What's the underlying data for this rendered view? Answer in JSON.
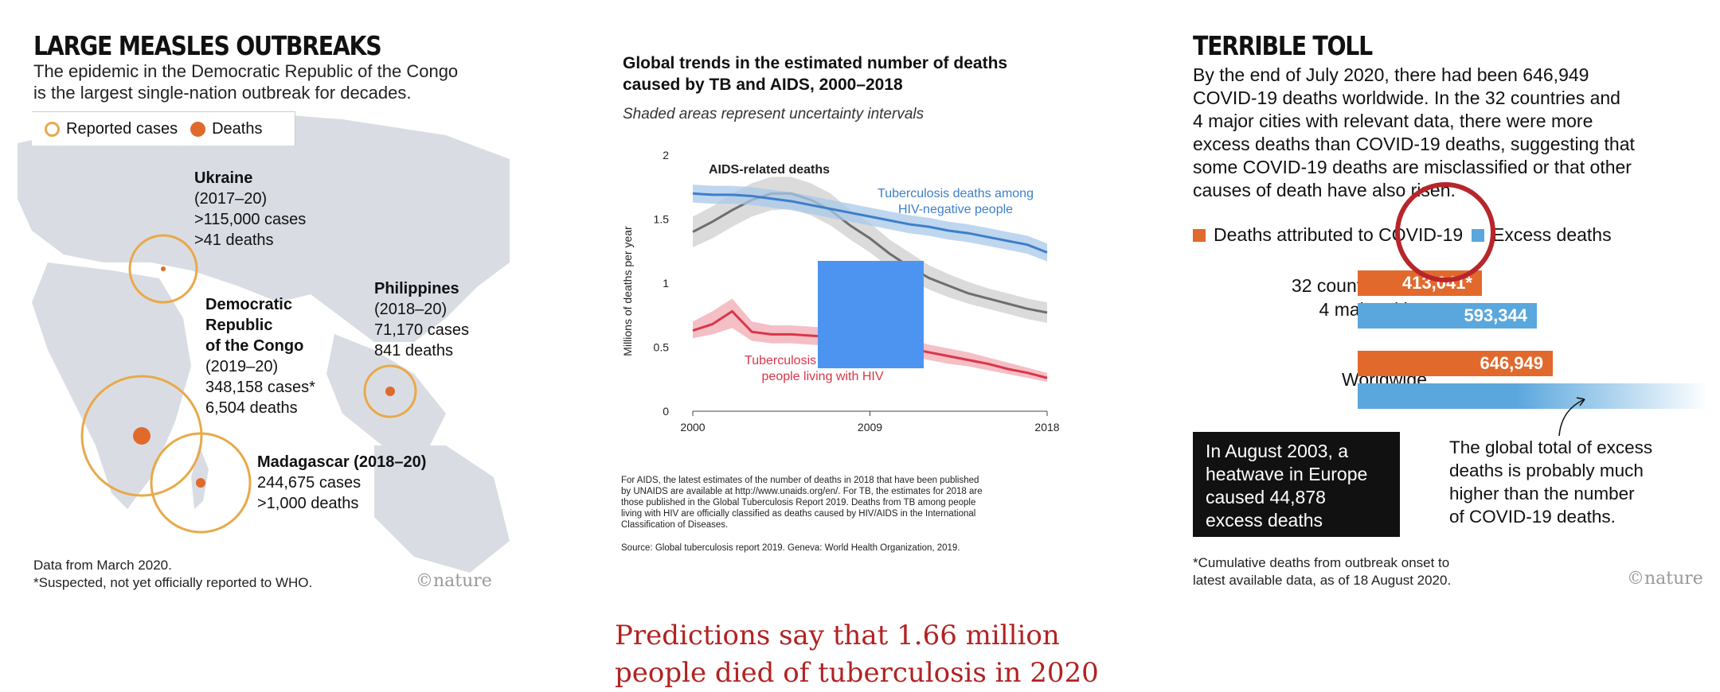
{
  "measles": {
    "title": "LARGE MEASLES OUTBREAKS",
    "subtitle_lines": [
      "The epidemic in the Democratic Republic of the Congo",
      "is the largest single-nation outbreak for decades."
    ],
    "legend": {
      "reported": "Reported cases",
      "deaths": "Deaths"
    },
    "colors": {
      "ring": "#e8a94a",
      "death": "#e06a2c",
      "land": "#d9dde3"
    },
    "outbreaks": [
      {
        "lines": [
          "Ukraine",
          "(2017–20)",
          ">115,000 cases",
          ">41 deaths"
        ],
        "cases": 115000,
        "deaths": 41
      },
      {
        "lines": [
          "Democratic",
          "Republic",
          "of the Congo",
          "(2019–20)",
          "348,158 cases*",
          "6,504 deaths"
        ],
        "cases": 348158,
        "deaths": 6504
      },
      {
        "lines": [
          "Philippines",
          "(2018–20)",
          "71,170 cases",
          "841 deaths"
        ],
        "cases": 71170,
        "deaths": 841
      },
      {
        "lines": [
          "Madagascar (2018–20)",
          "244,675 cases",
          ">1,000 deaths"
        ],
        "cases": 244675,
        "deaths": 1000
      }
    ],
    "foot_lines": [
      "Data from March 2020.",
      "*Suspected, not yet officially reported to WHO."
    ],
    "logo": "©nature"
  },
  "chart_data": {
    "type": "line",
    "title": "Global trends in the estimated number of deaths caused by TB and AIDS, 2000–2018",
    "subtitle": "Shaded areas represent uncertainty intervals",
    "ylabel": "Millions of deaths per year",
    "xlabel": "",
    "x": [
      2000,
      2001,
      2002,
      2003,
      2004,
      2005,
      2006,
      2007,
      2008,
      2009,
      2010,
      2011,
      2012,
      2013,
      2014,
      2015,
      2016,
      2017,
      2018
    ],
    "xlim": [
      2000,
      2018
    ],
    "ylim": [
      0,
      2
    ],
    "xticks": [
      "2000",
      "2009",
      "2018"
    ],
    "yticks": [
      "0",
      "0.5",
      "1",
      "1.5",
      "2"
    ],
    "grid": false,
    "series": [
      {
        "name": "AIDS-related deaths",
        "color": "#6e6e6e",
        "band": "#cfcfcf",
        "values": [
          1.4,
          1.48,
          1.57,
          1.65,
          1.7,
          1.7,
          1.65,
          1.57,
          1.45,
          1.35,
          1.23,
          1.13,
          1.04,
          0.98,
          0.92,
          0.88,
          0.84,
          0.8,
          0.77
        ],
        "lower": [
          1.28,
          1.35,
          1.44,
          1.52,
          1.57,
          1.58,
          1.53,
          1.45,
          1.34,
          1.24,
          1.12,
          1.03,
          0.95,
          0.89,
          0.84,
          0.8,
          0.76,
          0.72,
          0.69
        ],
        "upper": [
          1.52,
          1.6,
          1.7,
          1.78,
          1.83,
          1.83,
          1.78,
          1.7,
          1.57,
          1.47,
          1.34,
          1.24,
          1.14,
          1.07,
          1.01,
          0.96,
          0.92,
          0.88,
          0.85
        ],
        "label_lines": [
          "AIDS-related deaths"
        ]
      },
      {
        "name": "Tuberculosis deaths among HIV-negative people",
        "color": "#3d7fc9",
        "band": "#a9c8ea",
        "values": [
          1.7,
          1.69,
          1.69,
          1.68,
          1.66,
          1.64,
          1.61,
          1.58,
          1.55,
          1.52,
          1.49,
          1.46,
          1.44,
          1.41,
          1.39,
          1.36,
          1.33,
          1.3,
          1.24
        ],
        "lower": [
          1.63,
          1.62,
          1.62,
          1.61,
          1.59,
          1.57,
          1.54,
          1.51,
          1.48,
          1.45,
          1.42,
          1.39,
          1.37,
          1.34,
          1.32,
          1.29,
          1.26,
          1.23,
          1.17
        ],
        "upper": [
          1.77,
          1.76,
          1.76,
          1.75,
          1.73,
          1.71,
          1.68,
          1.65,
          1.62,
          1.59,
          1.56,
          1.53,
          1.51,
          1.48,
          1.46,
          1.43,
          1.4,
          1.37,
          1.31
        ],
        "label_lines": [
          "Tuberculosis deaths among",
          "HIV-negative people"
        ]
      },
      {
        "name": "Tuberculosis deaths among people living with HIV",
        "color": "#d9364a",
        "band": "#f0a9b2",
        "values": [
          0.63,
          0.68,
          0.78,
          0.62,
          0.6,
          0.6,
          0.59,
          0.58,
          0.57,
          0.55,
          0.52,
          0.49,
          0.46,
          0.43,
          0.4,
          0.37,
          0.33,
          0.3,
          0.26
        ],
        "lower": [
          0.57,
          0.6,
          0.65,
          0.55,
          0.53,
          0.53,
          0.52,
          0.51,
          0.5,
          0.48,
          0.45,
          0.43,
          0.4,
          0.37,
          0.35,
          0.32,
          0.29,
          0.26,
          0.23
        ],
        "upper": [
          0.7,
          0.78,
          0.88,
          0.7,
          0.67,
          0.67,
          0.66,
          0.65,
          0.64,
          0.62,
          0.59,
          0.56,
          0.52,
          0.49,
          0.46,
          0.42,
          0.38,
          0.34,
          0.3
        ],
        "label_lines": [
          "Tuberculosis deaths among",
          "people living with HIV"
        ]
      }
    ],
    "overlay_color": "#4d94f0",
    "footnote_lines": [
      "For AIDS, the latest estimates of the number of deaths in 2018 that have been published",
      "by UNAIDS are available at http://www.unaids.org/en/. For TB, the estimates for 2018 are",
      "those published in the Global Tuberculosis Report 2019. Deaths from TB among people",
      "living with HIV are officially classified as deaths caused by HIV/AIDS in the International",
      "Classification of Diseases."
    ],
    "source": "Source: Global tuberculosis report 2019. Geneva: World Health Organization, 2019."
  },
  "covid": {
    "title": "TERRIBLE TOLL",
    "body_lines": [
      "By the end of July 2020, there had been 646,949",
      "COVID-19 deaths worldwide. In the 32 countries and",
      "4 major cities with relevant data, there were more",
      "excess deaths than COVID-19 deaths, suggesting that",
      "some COVID-19 deaths are misclassified or that other",
      "causes of death have also risen."
    ],
    "legend": {
      "attributed": "Deaths attributed to COVID-19",
      "excess": "Excess deaths"
    },
    "colors": {
      "attributed": "#e2692c",
      "excess": "#5aa7dd",
      "circle": "#b8262b"
    },
    "rows": [
      {
        "label_lines": [
          "32 countries and",
          "4 major cities"
        ],
        "attributed": 413041,
        "attributed_label": "413,041*",
        "excess": 593344,
        "excess_label": "593,344"
      },
      {
        "label_lines": [
          "Worldwide"
        ],
        "attributed": 646949,
        "attributed_label": "646,949"
      }
    ],
    "blackbox_lines": [
      "In August 2003, a",
      "heatwave in Europe",
      "caused 44,878",
      "excess deaths"
    ],
    "note_lines": [
      "The global total of excess",
      "deaths is probably much",
      "higher than the number",
      "of COVID-19 deaths."
    ],
    "footnote_lines": [
      "*Cumulative deaths from outbreak onset to",
      "latest available data, as of 18 August 2020."
    ],
    "logo": "©nature"
  },
  "caption_lines": [
    "Predictions say that 1.66 million",
    "people died of tuberculosis in 2020"
  ]
}
